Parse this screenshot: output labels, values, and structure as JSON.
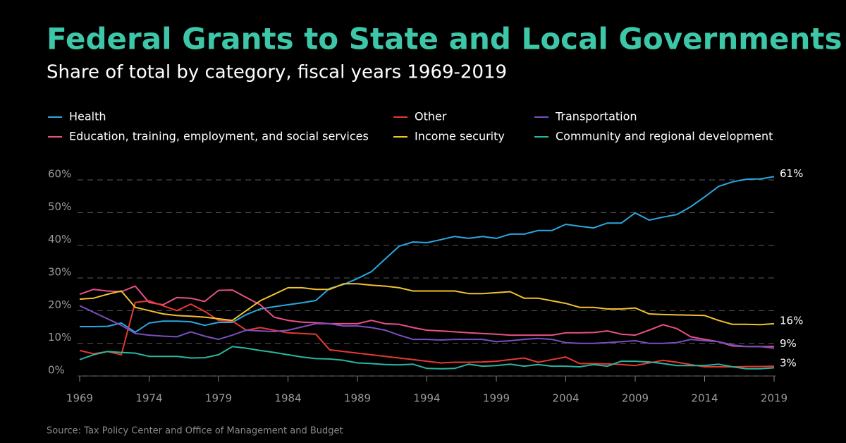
{
  "chart_data": {
    "type": "line",
    "title": "Federal Grants to State and Local Governments",
    "subtitle": "Share of total by category, fiscal years 1969-2019",
    "source": "Source: Tax Policy Center and Office of Management and Budget",
    "x": [
      1969,
      1970,
      1971,
      1972,
      1973,
      1974,
      1975,
      1976,
      1977,
      1978,
      1979,
      1980,
      1981,
      1982,
      1983,
      1984,
      1985,
      1986,
      1987,
      1988,
      1989,
      1990,
      1991,
      1992,
      1993,
      1994,
      1995,
      1996,
      1997,
      1998,
      1999,
      2000,
      2001,
      2002,
      2003,
      2004,
      2005,
      2006,
      2007,
      2008,
      2009,
      2010,
      2011,
      2012,
      2013,
      2014,
      2015,
      2016,
      2017,
      2018,
      2019
    ],
    "xlim": [
      1969,
      2019
    ],
    "xticks": [
      1969,
      1974,
      1979,
      1984,
      1989,
      1994,
      1999,
      2004,
      2009,
      2014,
      2019
    ],
    "ylim": [
      0,
      60
    ],
    "yticks": [
      {
        "value": 0,
        "label": "0%"
      },
      {
        "value": 10,
        "label": "10%"
      },
      {
        "value": 20,
        "label": "20%"
      },
      {
        "value": 30,
        "label": "30%"
      },
      {
        "value": 40,
        "label": "40%"
      },
      {
        "value": 50,
        "label": "50%"
      },
      {
        "value": 60,
        "label": "60%"
      }
    ],
    "grid": true,
    "legend": "top",
    "series": [
      {
        "name": "Health",
        "color": "#29a8e0",
        "values": [
          15.1,
          15.1,
          15.2,
          16.2,
          13.4,
          16.2,
          16.8,
          16.8,
          16.6,
          15.5,
          16.4,
          16.4,
          18.8,
          20.5,
          21.2,
          21.8,
          22.4,
          23.1,
          26.8,
          28,
          29.8,
          31.9,
          35.8,
          39.7,
          41,
          40.8,
          41.7,
          42.7,
          42.1,
          42.7,
          42.1,
          43.4,
          43.4,
          44.5,
          44.5,
          46.4,
          45.8,
          45.3,
          46.8,
          46.8,
          49.9,
          47.7,
          48.6,
          49.4,
          51.8,
          54.8,
          58,
          59.4,
          60.2,
          60.3,
          61
        ],
        "value_labels": [
          null,
          null,
          null,
          null,
          null,
          null,
          null,
          null,
          null,
          null,
          null,
          null,
          null,
          null,
          null,
          null,
          null,
          null,
          null,
          null,
          null,
          null,
          null,
          null,
          null,
          null,
          null,
          null,
          null,
          null,
          null,
          null,
          null,
          null,
          null,
          null,
          null,
          null,
          null,
          null,
          null,
          null,
          null,
          null,
          null,
          null,
          null,
          null,
          null,
          null,
          "61%"
        ]
      },
      {
        "name": "Education, training, employment, and social services",
        "color": "#e8508a",
        "values": [
          25,
          26.5,
          26,
          25.8,
          27.5,
          22.5,
          21.8,
          24,
          23.8,
          22.8,
          26.2,
          26.3,
          24,
          21.8,
          18,
          17,
          16.5,
          16.3,
          16,
          16,
          16,
          17,
          16,
          15.8,
          14.8,
          14,
          13.8,
          13.5,
          13.2,
          13,
          12.8,
          12.5,
          12.5,
          12.5,
          12.5,
          13.2,
          13.2,
          13.3,
          13.8,
          12.8,
          12.5,
          14,
          15.7,
          14.5,
          12,
          11.2,
          10.5,
          9.2,
          9,
          9,
          9
        ],
        "value_labels": [
          null,
          null,
          null,
          null,
          null,
          null,
          null,
          null,
          null,
          null,
          null,
          null,
          null,
          null,
          null,
          null,
          null,
          null,
          null,
          null,
          null,
          null,
          null,
          null,
          null,
          null,
          null,
          null,
          null,
          null,
          null,
          null,
          null,
          null,
          null,
          null,
          null,
          null,
          null,
          null,
          null,
          null,
          null,
          null,
          null,
          null,
          null,
          null,
          null,
          null,
          "9%"
        ]
      },
      {
        "name": "Other",
        "color": "#e63a2e",
        "values": [
          7.8,
          6.8,
          7.5,
          6.5,
          22.5,
          23,
          21.5,
          20,
          22,
          19.8,
          17,
          16.8,
          14,
          14.8,
          14,
          13.2,
          13,
          12.8,
          8,
          7.5,
          7,
          6.5,
          6,
          5.5,
          5,
          4.5,
          4,
          4.2,
          4.2,
          4.3,
          4.5,
          5,
          5.5,
          4.2,
          5,
          5.8,
          3.8,
          3.8,
          3.7,
          3.5,
          3.2,
          4,
          4.8,
          4.2,
          3.5,
          2.8,
          2.8,
          2.8,
          2.9,
          2.9,
          3
        ],
        "value_labels": [
          null,
          null,
          null,
          null,
          null,
          null,
          null,
          null,
          null,
          null,
          null,
          null,
          null,
          null,
          null,
          null,
          null,
          null,
          null,
          null,
          null,
          null,
          null,
          null,
          null,
          null,
          null,
          null,
          null,
          null,
          null,
          null,
          null,
          null,
          null,
          null,
          null,
          null,
          null,
          null,
          null,
          null,
          null,
          null,
          null,
          null,
          null,
          null,
          null,
          null,
          "3%"
        ]
      },
      {
        "name": "Income security",
        "color": "#f2c12e",
        "values": [
          23.5,
          23.8,
          25,
          26,
          21,
          20,
          19,
          18.5,
          18.3,
          18,
          17.5,
          17,
          20,
          23,
          25,
          27,
          27,
          26.5,
          26.5,
          28.2,
          28.2,
          27.8,
          27.5,
          27,
          26,
          26,
          26,
          26,
          25.2,
          25.2,
          25.5,
          25.8,
          23.8,
          23.8,
          23,
          22.2,
          21,
          21,
          20.5,
          20.5,
          20.8,
          19,
          18.8,
          18.7,
          18.6,
          18.5,
          17,
          15.8,
          15.8,
          15.7,
          16
        ],
        "value_labels": [
          null,
          null,
          null,
          null,
          null,
          null,
          null,
          null,
          null,
          null,
          null,
          null,
          null,
          null,
          null,
          null,
          null,
          null,
          null,
          null,
          null,
          null,
          null,
          null,
          null,
          null,
          null,
          null,
          null,
          null,
          null,
          null,
          null,
          null,
          null,
          null,
          null,
          null,
          null,
          null,
          null,
          null,
          null,
          null,
          null,
          null,
          null,
          null,
          null,
          null,
          "16%"
        ]
      },
      {
        "name": "Transportation",
        "color": "#7b4fbf",
        "values": [
          21.5,
          19.5,
          17.5,
          15.5,
          13,
          12.5,
          12.2,
          12,
          13.5,
          12.2,
          11.2,
          12.5,
          14,
          13.8,
          13.6,
          14,
          15,
          16,
          16,
          15.3,
          15.3,
          14.8,
          14,
          12.5,
          11.2,
          11.2,
          11,
          11.2,
          11.2,
          11.2,
          10.5,
          10.8,
          11.2,
          11.5,
          11.2,
          10.2,
          10,
          10,
          10.2,
          10.5,
          10.8,
          10,
          10,
          10.2,
          11.2,
          10.8,
          10.5,
          9.5,
          9,
          9,
          8.5
        ]
      },
      {
        "name": "Community and regional development",
        "color": "#2bb5a0",
        "values": [
          5,
          6.5,
          7.5,
          7.2,
          7,
          6,
          6,
          6,
          5.5,
          5.6,
          6.5,
          9,
          8.5,
          7.8,
          7.2,
          6.5,
          5.8,
          5.3,
          5.2,
          4.8,
          4,
          3.8,
          3.5,
          3.4,
          3.6,
          2.3,
          2.2,
          2.3,
          3.6,
          3,
          3.2,
          3.6,
          3,
          3.5,
          3,
          3,
          2.8,
          3.5,
          3,
          4.5,
          4.5,
          4.3,
          3.8,
          3.2,
          3.2,
          3.2,
          3.6,
          2.8,
          2.2,
          2.2,
          2.5
        ]
      }
    ]
  }
}
